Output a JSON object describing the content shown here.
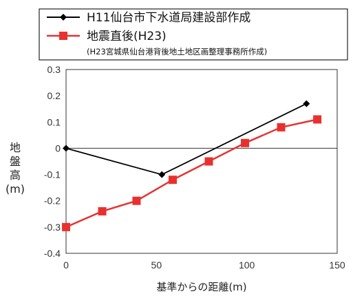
{
  "legend": {
    "entries": [
      {
        "label": "H11仙台市下水道局建設部作成",
        "color": "#000000",
        "marker": "diamond"
      },
      {
        "label": "地震直後(H23)",
        "color": "#e8312f",
        "marker": "square"
      }
    ],
    "note": "(H23宮城県仙台港背後地土地区画整理事務所作成)"
  },
  "chart_data": {
    "type": "line",
    "xlabel": "基準からの距離(m)",
    "ylabel": [
      "地",
      "盤",
      "高",
      "(m)"
    ],
    "xlim": [
      0,
      150
    ],
    "ylim": [
      -0.4,
      0.3
    ],
    "x_ticks": [
      0,
      50,
      100,
      150
    ],
    "x_tick_labels": [
      "0",
      "50",
      "100",
      "150"
    ],
    "y_ticks": [
      0.3,
      0.2,
      0.1,
      0,
      -0.1,
      -0.2,
      -0.3,
      -0.4
    ],
    "y_tick_labels": [
      "0.3",
      "0.2",
      "0.1",
      "0",
      "-0.1",
      "-0.2",
      "-0.3",
      "-0.4"
    ],
    "grid": false,
    "zero_line": true,
    "legend_position": "top",
    "series": [
      {
        "name": "H11仙台市下水道局建設部作成",
        "color": "#000000",
        "marker": "diamond",
        "points": [
          [
            0,
            0.0
          ],
          [
            53,
            -0.1
          ],
          [
            133,
            0.17
          ]
        ]
      },
      {
        "name": "地震直後(H23)",
        "color": "#e8312f",
        "marker": "square",
        "points": [
          [
            0,
            -0.3
          ],
          [
            20,
            -0.24
          ],
          [
            39,
            -0.2
          ],
          [
            59,
            -0.12
          ],
          [
            79,
            -0.05
          ],
          [
            99,
            0.02
          ],
          [
            119,
            0.08
          ],
          [
            139,
            0.11
          ]
        ]
      }
    ]
  }
}
